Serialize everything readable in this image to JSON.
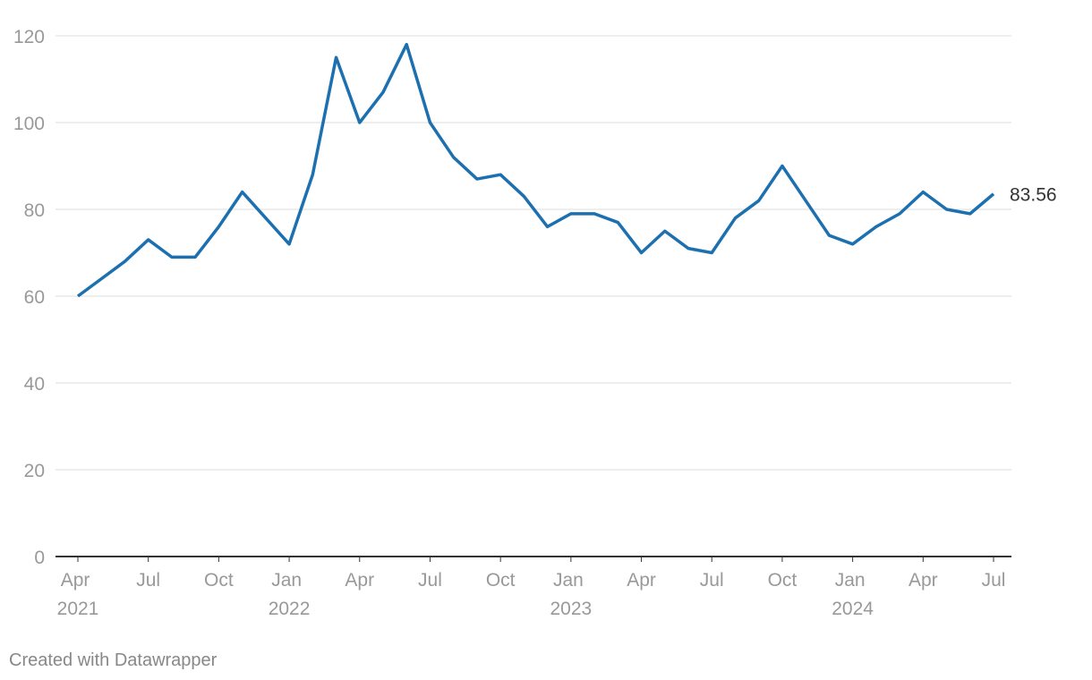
{
  "chart_data": {
    "type": "line",
    "x": [
      "2021-04",
      "2021-05",
      "2021-06",
      "2021-07",
      "2021-08",
      "2021-09",
      "2021-10",
      "2021-11",
      "2021-12",
      "2022-01",
      "2022-02",
      "2022-03",
      "2022-04",
      "2022-05",
      "2022-06",
      "2022-07",
      "2022-08",
      "2022-09",
      "2022-10",
      "2022-11",
      "2022-12",
      "2023-01",
      "2023-02",
      "2023-03",
      "2023-04",
      "2023-05",
      "2023-06",
      "2023-07",
      "2023-08",
      "2023-09",
      "2023-10",
      "2023-11",
      "2023-12",
      "2024-01",
      "2024-02",
      "2024-03",
      "2024-04",
      "2024-05",
      "2024-06",
      "2024-07"
    ],
    "series": [
      {
        "color": "#1d70b0",
        "values": [
          60,
          64,
          68,
          73,
          69,
          69,
          76,
          84,
          78,
          72,
          88,
          115,
          100,
          107,
          118,
          100,
          92,
          87,
          88,
          83,
          76,
          79,
          79,
          77,
          70,
          75,
          71,
          70,
          78,
          82,
          90,
          82,
          74,
          72,
          76,
          79,
          84,
          80,
          79,
          83.56
        ]
      }
    ],
    "xlim": [
      "2021-04",
      "2024-07"
    ],
    "xticks": [
      {
        "value": "2021-04",
        "label": "Apr 2021"
      },
      {
        "value": "2021-07",
        "label": "Jul"
      },
      {
        "value": "2021-10",
        "label": "Oct"
      },
      {
        "value": "2022-01",
        "label": "Jan 2022"
      },
      {
        "value": "2022-04",
        "label": "Apr"
      },
      {
        "value": "2022-07",
        "label": "Jul"
      },
      {
        "value": "2022-10",
        "label": "Oct"
      },
      {
        "value": "2023-01",
        "label": "Jan 2023"
      },
      {
        "value": "2023-04",
        "label": "Apr"
      },
      {
        "value": "2023-07",
        "label": "Jul"
      },
      {
        "value": "2023-10",
        "label": "Oct"
      },
      {
        "value": "2024-01",
        "label": "Jan 2024"
      },
      {
        "value": "2024-04",
        "label": "Apr"
      },
      {
        "value": "2024-07",
        "label": "Jul"
      }
    ],
    "ylim": [
      0,
      120
    ],
    "yticks": [
      0,
      20,
      40,
      60,
      80,
      100,
      120
    ],
    "grid": true,
    "credit": "Created with Datawrapper"
  }
}
